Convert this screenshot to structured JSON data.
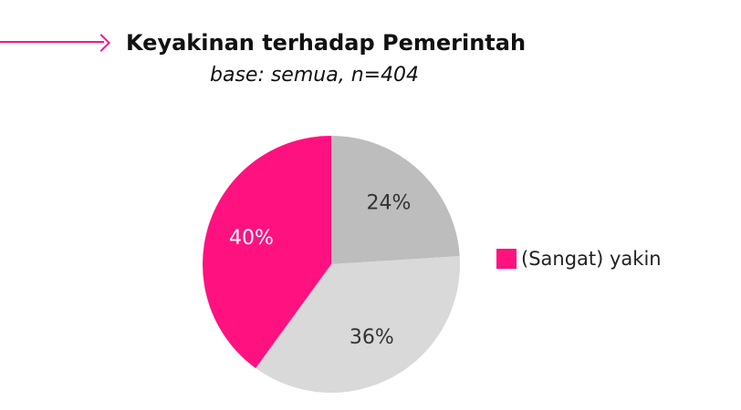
{
  "chart_data": {
    "type": "pie",
    "title": "Keyakinan terhadap Pemerintah",
    "subtitle": "base: semua, n=404",
    "slices": [
      {
        "value": 24,
        "label": "24%",
        "color": "#bdbdbd",
        "label_color": "#333333"
      },
      {
        "value": 36,
        "label": "36%",
        "color": "#d9d9d9",
        "label_color": "#333333"
      },
      {
        "value": 40,
        "label": "40%",
        "color": "#ff1180",
        "label_color": "#ffffff"
      }
    ],
    "legend": [
      {
        "label": "(Sangat) yakin",
        "color": "#ff1180"
      }
    ],
    "legend_placement": "right"
  },
  "colors": {
    "accent": "#ff1180"
  }
}
